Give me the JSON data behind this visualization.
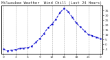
{
  "title": "Milwaukee Weather  Wind Chill (Last 24 Hours)",
  "x_values": [
    0,
    1,
    2,
    3,
    4,
    5,
    6,
    7,
    8,
    9,
    10,
    11,
    12,
    13,
    14,
    15,
    16,
    17,
    18,
    19,
    20,
    21,
    22,
    23,
    24
  ],
  "y_values": [
    -5,
    -7,
    -6,
    -5.5,
    -4.5,
    -4,
    -3.5,
    -2,
    2,
    6,
    11,
    17,
    21,
    26,
    33,
    37,
    34,
    28,
    22,
    18,
    14,
    10,
    9,
    7,
    6
  ],
  "x_tick_positions": [
    0,
    3,
    6,
    9,
    12,
    15,
    18,
    21,
    24
  ],
  "x_tick_labels": [
    "0",
    "3",
    "6",
    "9",
    "12",
    "15",
    "18",
    "21",
    "0"
  ],
  "y_right_ticks": [
    35,
    30,
    25,
    20,
    15,
    10,
    5,
    0,
    -5
  ],
  "ylim": [
    -10,
    40
  ],
  "xlim": [
    -0.5,
    24.5
  ],
  "bg_color": "#ffffff",
  "plot_bg_color": "#ffffff",
  "line_color": "#0000cc",
  "marker_color": "#0000cc",
  "title_color": "#333333",
  "tick_color": "#333333",
  "grid_color": "#aaaaaa",
  "spine_color": "#000000",
  "title_fontsize": 4.0,
  "tick_fontsize": 3.2,
  "line_width": 0.7,
  "marker_size": 1.3,
  "marker_style": "s"
}
